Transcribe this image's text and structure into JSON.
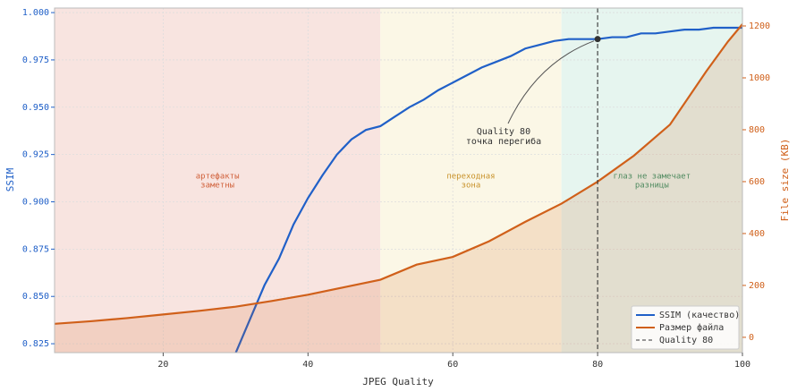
{
  "chart_data": {
    "type": "line",
    "xlabel": "JPEG Quality",
    "ylabel": "SSIM",
    "y2label": "File size (KB)",
    "xlim": [
      5,
      100
    ],
    "xticks": [
      20,
      40,
      60,
      80,
      100
    ],
    "ylim": [
      0.8203,
      1.0024
    ],
    "yticks": [
      {
        "value": 0.825,
        "label": "0.825"
      },
      {
        "value": 0.85,
        "label": "0.850"
      },
      {
        "value": 0.875,
        "label": "0.875"
      },
      {
        "value": 0.9,
        "label": "0.900"
      },
      {
        "value": 0.925,
        "label": "0.925"
      },
      {
        "value": 0.95,
        "label": "0.950"
      },
      {
        "value": 0.975,
        "label": "0.975"
      },
      {
        "value": 1,
        "label": "1.000"
      }
    ],
    "y2lim": [
      -59,
      1269
    ],
    "y2ticks": [
      0,
      200,
      400,
      600,
      800,
      1000,
      1200
    ],
    "grid": true,
    "legend": "lower right",
    "regions": [
      {
        "start": 5,
        "end": 50,
        "color": "#f8e4e0",
        "text_color": "#d0603a",
        "label": [
          "артефакты",
          "заметны"
        ]
      },
      {
        "start": 50,
        "end": 75,
        "color": "#fbf7e6",
        "text_color": "#c8922a",
        "label": [
          "переходная",
          "зона"
        ]
      },
      {
        "start": 75,
        "end": 100,
        "color": "#e6f5ef",
        "text_color": "#4f8a5f",
        "label": [
          "глаз не замечает",
          "разницы"
        ]
      }
    ],
    "series": [
      {
        "name": "SSIM (качество)",
        "color": "#2060c8",
        "x": [
          30,
          32,
          34,
          36,
          38,
          40,
          42,
          44,
          46,
          48,
          50,
          52,
          54,
          56,
          58,
          60,
          62,
          64,
          66,
          68,
          70,
          72,
          74,
          76,
          78,
          80,
          82,
          84,
          86,
          88,
          90,
          92,
          94,
          96,
          98,
          100
        ],
        "values": [
          0.82,
          0.838,
          0.856,
          0.87,
          0.888,
          0.902,
          0.914,
          0.925,
          0.933,
          0.938,
          0.94,
          0.945,
          0.95,
          0.954,
          0.959,
          0.963,
          0.967,
          0.971,
          0.974,
          0.977,
          0.981,
          0.983,
          0.985,
          0.986,
          0.986,
          0.986,
          0.987,
          0.987,
          0.989,
          0.989,
          0.99,
          0.991,
          0.991,
          0.992,
          0.992,
          0.992
        ]
      },
      {
        "name": "Размер файла",
        "color": "#d0601a",
        "axis": "y2",
        "x": [
          5,
          10,
          15,
          20,
          25,
          30,
          35,
          40,
          45,
          50,
          55,
          60,
          65,
          70,
          75,
          80,
          85,
          90,
          95,
          98,
          100
        ],
        "values": [
          52,
          62,
          74,
          88,
          102,
          118,
          140,
          164,
          193,
          222,
          280,
          310,
          370,
          445,
          515,
          600,
          700,
          820,
          1025,
          1140,
          1207
        ]
      }
    ],
    "vline": {
      "x": 80,
      "name": "Quality 80",
      "color": "#333"
    },
    "annotation": {
      "x": 80,
      "y": 0.986,
      "text": [
        "Quality 80",
        "точка перегиба"
      ]
    }
  }
}
